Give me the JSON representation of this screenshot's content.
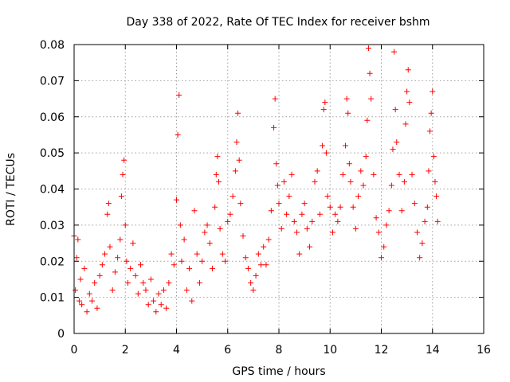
{
  "chart_data": {
    "type": "scatter",
    "title": "Day 338 of 2022, Rate Of TEC Index for receiver bshm",
    "xlabel": "GPS time / hours",
    "ylabel": "ROTI / TECUs",
    "xlim": [
      0,
      16
    ],
    "ylim": [
      0,
      0.08
    ],
    "xticks": [
      "0",
      "2",
      "4",
      "6",
      "8",
      "10",
      "12",
      "14",
      "16"
    ],
    "yticks": [
      "0",
      "0.01",
      "0.02",
      "0.03",
      "0.04",
      "0.05",
      "0.06",
      "0.07",
      "0.08"
    ],
    "grid": true,
    "marker": "plus",
    "color": "#ff0000",
    "series": [
      {
        "x": [
          0.0,
          0.05,
          0.1,
          0.15,
          0.2,
          0.25,
          0.3,
          0.4,
          0.5,
          0.6,
          0.7,
          0.8,
          0.9,
          1.0,
          1.1,
          1.2,
          1.3,
          1.35,
          1.4,
          1.5,
          1.6,
          1.7,
          1.8,
          1.85,
          1.9,
          1.95,
          2.0,
          2.05,
          2.1,
          2.2,
          2.3,
          2.4,
          2.5,
          2.6,
          2.7,
          2.8,
          2.9,
          3.0,
          3.1,
          3.2,
          3.3,
          3.4,
          3.5,
          3.6,
          3.7,
          3.8,
          3.9,
          4.0,
          4.05,
          4.1,
          4.15,
          4.2,
          4.3,
          4.4,
          4.5,
          4.6,
          4.7,
          4.8,
          4.9,
          5.0,
          5.1,
          5.2,
          5.3,
          5.4,
          5.5,
          5.55,
          5.6,
          5.65,
          5.7,
          5.8,
          5.9,
          6.0,
          6.1,
          6.2,
          6.3,
          6.35,
          6.4,
          6.45,
          6.5,
          6.6,
          6.7,
          6.8,
          6.9,
          7.0,
          7.1,
          7.2,
          7.3,
          7.4,
          7.5,
          7.6,
          7.7,
          7.8,
          7.85,
          7.9,
          7.95,
          8.0,
          8.1,
          8.2,
          8.3,
          8.4,
          8.5,
          8.6,
          8.7,
          8.8,
          8.9,
          9.0,
          9.1,
          9.2,
          9.3,
          9.4,
          9.5,
          9.6,
          9.7,
          9.75,
          9.8,
          9.85,
          9.9,
          10.0,
          10.1,
          10.2,
          10.3,
          10.4,
          10.5,
          10.6,
          10.65,
          10.7,
          10.75,
          10.8,
          10.9,
          11.0,
          11.1,
          11.2,
          11.3,
          11.4,
          11.45,
          11.5,
          11.55,
          11.6,
          11.7,
          11.8,
          11.9,
          12.0,
          12.1,
          12.2,
          12.3,
          12.4,
          12.45,
          12.5,
          12.55,
          12.6,
          12.7,
          12.8,
          12.9,
          12.95,
          13.0,
          13.05,
          13.1,
          13.2,
          13.3,
          13.4,
          13.5,
          13.6,
          13.7,
          13.8,
          13.85,
          13.9,
          13.95,
          14.0,
          14.05,
          14.1,
          14.15,
          14.2
        ],
        "y": [
          0.027,
          0.012,
          0.021,
          0.026,
          0.009,
          0.015,
          0.008,
          0.018,
          0.006,
          0.011,
          0.009,
          0.014,
          0.007,
          0.016,
          0.019,
          0.022,
          0.033,
          0.036,
          0.024,
          0.012,
          0.017,
          0.021,
          0.026,
          0.038,
          0.044,
          0.048,
          0.03,
          0.02,
          0.014,
          0.018,
          0.025,
          0.016,
          0.011,
          0.019,
          0.014,
          0.012,
          0.008,
          0.015,
          0.009,
          0.006,
          0.011,
          0.008,
          0.012,
          0.007,
          0.014,
          0.022,
          0.019,
          0.037,
          0.055,
          0.066,
          0.03,
          0.02,
          0.026,
          0.012,
          0.018,
          0.009,
          0.034,
          0.022,
          0.014,
          0.02,
          0.028,
          0.03,
          0.025,
          0.018,
          0.035,
          0.044,
          0.049,
          0.042,
          0.029,
          0.022,
          0.02,
          0.031,
          0.033,
          0.038,
          0.045,
          0.053,
          0.061,
          0.048,
          0.036,
          0.027,
          0.021,
          0.018,
          0.014,
          0.012,
          0.016,
          0.022,
          0.019,
          0.024,
          0.019,
          0.026,
          0.034,
          0.057,
          0.065,
          0.047,
          0.041,
          0.036,
          0.029,
          0.042,
          0.033,
          0.038,
          0.044,
          0.031,
          0.028,
          0.022,
          0.033,
          0.036,
          0.029,
          0.024,
          0.031,
          0.042,
          0.045,
          0.033,
          0.052,
          0.062,
          0.064,
          0.05,
          0.038,
          0.035,
          0.028,
          0.033,
          0.031,
          0.035,
          0.044,
          0.052,
          0.065,
          0.061,
          0.047,
          0.042,
          0.035,
          0.029,
          0.038,
          0.045,
          0.041,
          0.049,
          0.059,
          0.079,
          0.072,
          0.065,
          0.044,
          0.032,
          0.028,
          0.021,
          0.024,
          0.03,
          0.034,
          0.041,
          0.051,
          0.078,
          0.062,
          0.053,
          0.044,
          0.034,
          0.042,
          0.058,
          0.067,
          0.073,
          0.064,
          0.044,
          0.036,
          0.028,
          0.021,
          0.025,
          0.031,
          0.035,
          0.045,
          0.056,
          0.061,
          0.067,
          0.049,
          0.042,
          0.038,
          0.031
        ]
      }
    ]
  }
}
